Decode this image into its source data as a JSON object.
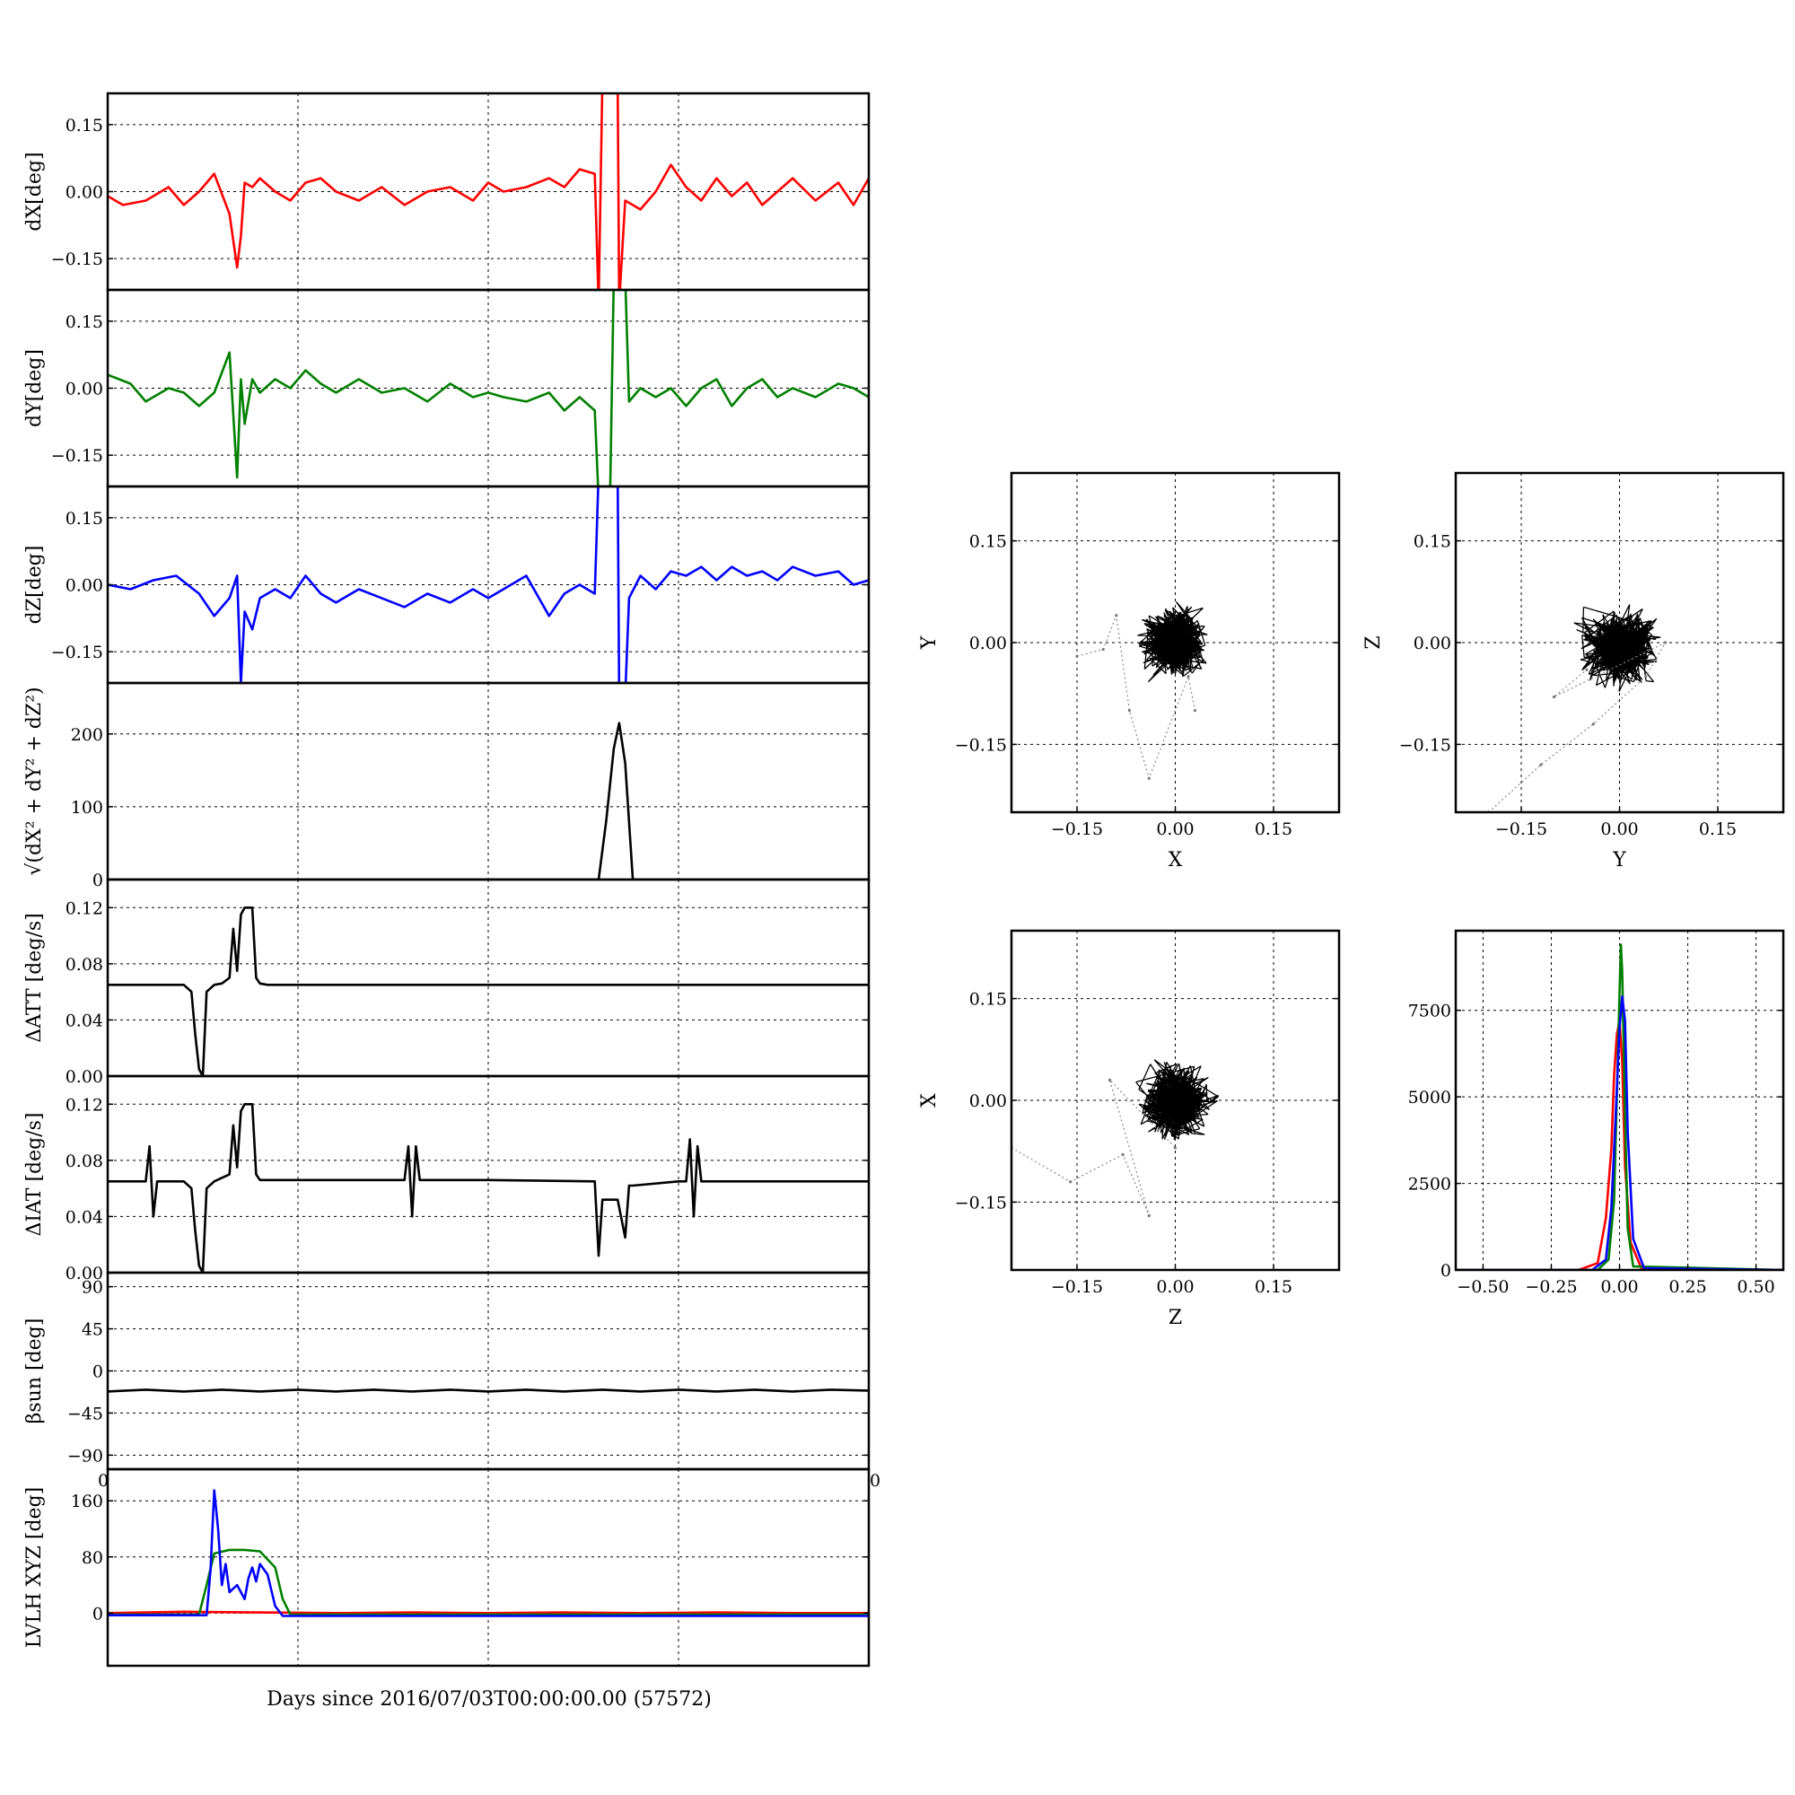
{
  "figure": {
    "xlabel": "Days since 2016/07/03T00:00:00.00 (57572)",
    "edge_ticks": [
      "0",
      "0"
    ]
  },
  "chart_data": [
    {
      "type": "line",
      "ylabel": "dX[deg]",
      "ylim": [
        -0.22,
        0.22
      ],
      "yticks": [
        0.15,
        0.0,
        -0.15
      ],
      "ytick_labels": [
        "0.15",
        "0.00",
        "−0.15"
      ],
      "xlim": [
        0,
        1
      ],
      "grid": true,
      "series": [
        {
          "color": "#ff0000",
          "x": [
            0.0,
            0.02,
            0.05,
            0.08,
            0.1,
            0.12,
            0.14,
            0.16,
            0.17,
            0.175,
            0.18,
            0.19,
            0.2,
            0.22,
            0.24,
            0.26,
            0.28,
            0.3,
            0.33,
            0.36,
            0.39,
            0.42,
            0.45,
            0.48,
            0.5,
            0.52,
            0.55,
            0.58,
            0.6,
            0.62,
            0.64,
            0.645,
            0.65,
            0.67,
            0.672,
            0.68,
            0.7,
            0.72,
            0.74,
            0.76,
            0.78,
            0.8,
            0.82,
            0.84,
            0.86,
            0.88,
            0.9,
            0.93,
            0.96,
            0.98,
            1.0
          ],
          "y": [
            -0.01,
            -0.03,
            -0.02,
            0.01,
            -0.03,
            0.0,
            0.04,
            -0.05,
            -0.17,
            -0.1,
            0.02,
            0.01,
            0.03,
            0.0,
            -0.02,
            0.02,
            0.03,
            0.0,
            -0.02,
            0.01,
            -0.03,
            0.0,
            0.01,
            -0.02,
            0.02,
            0.0,
            0.01,
            0.03,
            0.01,
            0.05,
            0.04,
            -0.25,
            0.25,
            0.25,
            -0.25,
            -0.02,
            -0.04,
            0.0,
            0.06,
            0.01,
            -0.02,
            0.03,
            -0.01,
            0.02,
            -0.03,
            0.0,
            0.03,
            -0.02,
            0.02,
            -0.03,
            0.03
          ]
        }
      ]
    },
    {
      "type": "line",
      "ylabel": "dY[deg]",
      "ylim": [
        -0.22,
        0.22
      ],
      "yticks": [
        0.15,
        0.0,
        -0.15
      ],
      "ytick_labels": [
        "0.15",
        "0.00",
        "−0.15"
      ],
      "xlim": [
        0,
        1
      ],
      "grid": true,
      "series": [
        {
          "color": "#008000",
          "x": [
            0.0,
            0.03,
            0.05,
            0.08,
            0.1,
            0.12,
            0.14,
            0.16,
            0.17,
            0.175,
            0.18,
            0.19,
            0.2,
            0.22,
            0.24,
            0.26,
            0.28,
            0.3,
            0.33,
            0.36,
            0.39,
            0.42,
            0.45,
            0.48,
            0.5,
            0.52,
            0.55,
            0.58,
            0.6,
            0.62,
            0.64,
            0.645,
            0.66,
            0.665,
            0.68,
            0.685,
            0.7,
            0.72,
            0.74,
            0.76,
            0.78,
            0.8,
            0.82,
            0.84,
            0.86,
            0.88,
            0.9,
            0.93,
            0.96,
            0.98,
            1.0
          ],
          "y": [
            0.03,
            0.01,
            -0.03,
            0.0,
            -0.01,
            -0.04,
            -0.01,
            0.08,
            -0.2,
            0.02,
            -0.08,
            0.02,
            -0.01,
            0.02,
            0.0,
            0.04,
            0.01,
            -0.01,
            0.02,
            -0.01,
            0.0,
            -0.03,
            0.01,
            -0.02,
            -0.01,
            -0.02,
            -0.03,
            -0.01,
            -0.05,
            -0.02,
            -0.05,
            -0.25,
            -0.25,
            0.25,
            0.25,
            -0.03,
            0.0,
            -0.02,
            0.0,
            -0.04,
            0.0,
            0.02,
            -0.04,
            0.0,
            0.02,
            -0.02,
            0.0,
            -0.02,
            0.01,
            0.0,
            -0.02
          ]
        }
      ]
    },
    {
      "type": "line",
      "ylabel": "dZ[deg]",
      "ylim": [
        -0.22,
        0.22
      ],
      "yticks": [
        0.15,
        0.0,
        -0.15
      ],
      "ytick_labels": [
        "0.15",
        "0.00",
        "−0.15"
      ],
      "xlim": [
        0,
        1
      ],
      "grid": true,
      "series": [
        {
          "color": "#0000ff",
          "x": [
            0.0,
            0.03,
            0.06,
            0.09,
            0.12,
            0.14,
            0.16,
            0.17,
            0.175,
            0.18,
            0.19,
            0.2,
            0.22,
            0.24,
            0.26,
            0.28,
            0.3,
            0.33,
            0.36,
            0.39,
            0.42,
            0.45,
            0.48,
            0.5,
            0.52,
            0.55,
            0.58,
            0.6,
            0.62,
            0.64,
            0.645,
            0.67,
            0.672,
            0.68,
            0.685,
            0.7,
            0.72,
            0.74,
            0.76,
            0.78,
            0.8,
            0.82,
            0.84,
            0.86,
            0.88,
            0.9,
            0.93,
            0.96,
            0.98,
            1.0
          ],
          "y": [
            0.0,
            -0.01,
            0.01,
            0.02,
            -0.02,
            -0.07,
            -0.03,
            0.02,
            -0.22,
            -0.06,
            -0.1,
            -0.03,
            -0.01,
            -0.03,
            0.02,
            -0.02,
            -0.04,
            -0.01,
            -0.03,
            -0.05,
            -0.02,
            -0.04,
            -0.01,
            -0.03,
            -0.01,
            0.02,
            -0.07,
            -0.02,
            0.0,
            -0.02,
            0.25,
            0.25,
            -0.25,
            -0.25,
            -0.03,
            0.02,
            -0.01,
            0.03,
            0.02,
            0.04,
            0.01,
            0.04,
            0.02,
            0.03,
            0.01,
            0.04,
            0.02,
            0.03,
            0.0,
            0.01
          ]
        }
      ]
    },
    {
      "type": "line",
      "ylabel": "√(dX² + dY² + dZ²)",
      "ylim": [
        0,
        270
      ],
      "yticks": [
        200,
        100,
        0
      ],
      "ytick_labels": [
        "200",
        "100",
        "0"
      ],
      "xlim": [
        0,
        1
      ],
      "grid": true,
      "series": [
        {
          "color": "#000000",
          "x": [
            0.0,
            0.645,
            0.655,
            0.665,
            0.672,
            0.68,
            0.69,
            1.0
          ],
          "y": [
            0,
            0,
            80,
            180,
            215,
            160,
            0,
            0
          ]
        }
      ]
    },
    {
      "type": "line",
      "ylabel": "ΔATT [deg/s]",
      "ylim": [
        0,
        0.14
      ],
      "yticks": [
        0.12,
        0.08,
        0.04,
        0.0
      ],
      "ytick_labels": [
        "0.12",
        "0.08",
        "0.04",
        "0.00"
      ],
      "xlim": [
        0,
        1
      ],
      "grid": true,
      "series": [
        {
          "color": "#000000",
          "x": [
            0.0,
            0.08,
            0.1,
            0.11,
            0.115,
            0.12,
            0.125,
            0.13,
            0.14,
            0.15,
            0.16,
            0.165,
            0.17,
            0.175,
            0.18,
            0.19,
            0.195,
            0.2,
            0.21,
            0.3,
            0.5,
            0.7,
            1.0
          ],
          "y": [
            0.065,
            0.065,
            0.065,
            0.06,
            0.03,
            0.005,
            0.0,
            0.06,
            0.065,
            0.066,
            0.07,
            0.105,
            0.075,
            0.115,
            0.12,
            0.12,
            0.07,
            0.066,
            0.065,
            0.065,
            0.065,
            0.065,
            0.065
          ]
        }
      ]
    },
    {
      "type": "line",
      "ylabel": "ΔIAT [deg/s]",
      "ylim": [
        0,
        0.14
      ],
      "yticks": [
        0.12,
        0.08,
        0.04,
        0.0
      ],
      "ytick_labels": [
        "0.12",
        "0.08",
        "0.04",
        "0.00"
      ],
      "xlim": [
        0,
        1
      ],
      "grid": true,
      "series": [
        {
          "color": "#000000",
          "x": [
            0.0,
            0.05,
            0.055,
            0.06,
            0.065,
            0.1,
            0.11,
            0.115,
            0.12,
            0.125,
            0.13,
            0.14,
            0.16,
            0.165,
            0.17,
            0.175,
            0.18,
            0.19,
            0.195,
            0.2,
            0.39,
            0.395,
            0.4,
            0.405,
            0.41,
            0.5,
            0.64,
            0.645,
            0.65,
            0.67,
            0.68,
            0.685,
            0.69,
            0.75,
            0.76,
            0.765,
            0.77,
            0.775,
            0.78,
            1.0
          ],
          "y": [
            0.065,
            0.065,
            0.09,
            0.04,
            0.065,
            0.065,
            0.06,
            0.03,
            0.005,
            0.0,
            0.06,
            0.065,
            0.07,
            0.105,
            0.075,
            0.115,
            0.12,
            0.12,
            0.07,
            0.066,
            0.066,
            0.09,
            0.04,
            0.09,
            0.066,
            0.066,
            0.065,
            0.012,
            0.052,
            0.052,
            0.025,
            0.062,
            0.062,
            0.065,
            0.065,
            0.095,
            0.04,
            0.09,
            0.065,
            0.065
          ]
        }
      ]
    },
    {
      "type": "line",
      "ylabel": "βsun [deg]",
      "ylim": [
        -105,
        105
      ],
      "yticks": [
        90,
        45,
        0,
        -45,
        -90
      ],
      "ytick_labels": [
        "90",
        "45",
        "0",
        "−45",
        "−90"
      ],
      "xlim": [
        0,
        1
      ],
      "grid": true,
      "series": [
        {
          "color": "#000000",
          "x": [
            0.0,
            0.05,
            0.1,
            0.15,
            0.2,
            0.25,
            0.3,
            0.35,
            0.4,
            0.45,
            0.5,
            0.55,
            0.6,
            0.65,
            0.7,
            0.75,
            0.8,
            0.85,
            0.9,
            0.95,
            1.0
          ],
          "y": [
            -22,
            -20,
            -22,
            -20,
            -22,
            -20,
            -22,
            -20,
            -22,
            -20,
            -22,
            -20,
            -22,
            -20,
            -22,
            -20,
            -22,
            -20,
            -22,
            -20,
            -21
          ]
        }
      ]
    },
    {
      "type": "line",
      "ylabel": "LVLH XYZ [deg]",
      "ylim": [
        -75,
        205
      ],
      "yticks": [
        160,
        80,
        0
      ],
      "ytick_labels": [
        "160",
        "80",
        "0"
      ],
      "xlim": [
        0,
        1
      ],
      "grid": true,
      "series": [
        {
          "color": "#ff0000",
          "x": [
            0.0,
            0.1,
            0.2,
            0.3,
            0.4,
            0.5,
            0.6,
            0.7,
            0.8,
            0.9,
            1.0
          ],
          "y": [
            0,
            2,
            1,
            0,
            1,
            0,
            1,
            0,
            1,
            0,
            0
          ]
        },
        {
          "color": "#008000",
          "x": [
            0.0,
            0.12,
            0.13,
            0.14,
            0.16,
            0.18,
            0.2,
            0.22,
            0.23,
            0.24,
            1.0
          ],
          "y": [
            -2,
            -2,
            40,
            85,
            90,
            90,
            88,
            65,
            20,
            -2,
            -2
          ]
        },
        {
          "color": "#0000ff",
          "x": [
            0.0,
            0.13,
            0.135,
            0.14,
            0.145,
            0.15,
            0.155,
            0.16,
            0.17,
            0.18,
            0.185,
            0.19,
            0.195,
            0.2,
            0.21,
            0.22,
            0.23,
            0.4,
            0.6,
            0.8,
            1.0
          ],
          "y": [
            -3,
            -3,
            60,
            175,
            120,
            40,
            70,
            30,
            40,
            20,
            50,
            65,
            45,
            70,
            55,
            10,
            -4,
            -4,
            -4,
            -4,
            -4
          ]
        }
      ]
    },
    {
      "type": "scatter",
      "xlabel": "X",
      "ylabel": "Y",
      "xlim": [
        -0.25,
        0.25
      ],
      "ylim": [
        -0.25,
        0.25
      ],
      "xticks": [
        -0.15,
        0.0,
        0.15
      ],
      "yticks": [
        0.15,
        0.0,
        -0.15
      ],
      "xtick_labels": [
        "−0.15",
        "0.00",
        "0.15"
      ],
      "ytick_labels": [
        "0.15",
        "0.00",
        "−0.15"
      ],
      "grid": true,
      "cluster_center": [
        0.0,
        0.0
      ],
      "cluster_spread": 0.04,
      "tail": [
        [
          -0.15,
          -0.02
        ],
        [
          -0.11,
          -0.01
        ],
        [
          -0.09,
          0.04
        ],
        [
          -0.07,
          -0.1
        ],
        [
          -0.04,
          -0.2
        ],
        [
          0.02,
          -0.05
        ],
        [
          0.03,
          -0.1
        ]
      ]
    },
    {
      "type": "scatter",
      "xlabel": "Y",
      "ylabel": "Z",
      "xlim": [
        -0.25,
        0.25
      ],
      "ylim": [
        -0.25,
        0.25
      ],
      "xticks": [
        -0.15,
        0.0,
        0.15
      ],
      "yticks": [
        0.15,
        0.0,
        -0.15
      ],
      "xtick_labels": [
        "−0.15",
        "0.00",
        "0.15"
      ],
      "ytick_labels": [
        "0.15",
        "0.00",
        "−0.15"
      ],
      "grid": true,
      "cluster_center": [
        0.0,
        -0.01
      ],
      "cluster_spread": 0.045,
      "tail": [
        [
          -0.2,
          -0.25
        ],
        [
          -0.12,
          -0.18
        ],
        [
          -0.04,
          -0.12
        ],
        [
          0.04,
          -0.05
        ],
        [
          0.07,
          0.0
        ],
        [
          -0.1,
          -0.08
        ],
        [
          -0.05,
          -0.04
        ]
      ]
    },
    {
      "type": "scatter",
      "xlabel": "Z",
      "ylabel": "X",
      "xlim": [
        -0.25,
        0.25
      ],
      "ylim": [
        -0.25,
        0.25
      ],
      "xticks": [
        -0.15,
        0.0,
        0.15
      ],
      "yticks": [
        0.15,
        0.0,
        -0.15
      ],
      "xtick_labels": [
        "−0.15",
        "0.00",
        "0.15"
      ],
      "ytick_labels": [
        "0.15",
        "0.00",
        "−0.15"
      ],
      "grid": true,
      "cluster_center": [
        0.0,
        0.0
      ],
      "cluster_spread": 0.042,
      "tail": [
        [
          -0.25,
          -0.07
        ],
        [
          -0.16,
          -0.12
        ],
        [
          -0.08,
          -0.08
        ],
        [
          -0.04,
          -0.17
        ],
        [
          -0.1,
          0.03
        ],
        [
          0.0,
          -0.07
        ]
      ]
    },
    {
      "type": "line",
      "subtype": "histogram",
      "xlim": [
        -0.6,
        0.6
      ],
      "ylim": [
        0,
        9800
      ],
      "xticks": [
        -0.5,
        -0.25,
        0.0,
        0.25,
        0.5
      ],
      "yticks": [
        7500,
        5000,
        2500,
        0
      ],
      "xtick_labels": [
        "−0.50",
        "−0.25",
        "0.00",
        "0.25",
        "0.50"
      ],
      "ytick_labels": [
        "7500",
        "5000",
        "2500",
        "0"
      ],
      "grid": true,
      "series": [
        {
          "color": "#ff0000",
          "x": [
            -0.6,
            -0.15,
            -0.08,
            -0.05,
            -0.03,
            -0.02,
            -0.01,
            0.0,
            0.01,
            0.02,
            0.04,
            0.08,
            0.6
          ],
          "y": [
            0,
            0,
            200,
            1500,
            3500,
            5600,
            6800,
            7200,
            6000,
            3000,
            800,
            50,
            0
          ]
        },
        {
          "color": "#008000",
          "x": [
            -0.6,
            -0.08,
            -0.04,
            -0.02,
            -0.01,
            0.0,
            0.005,
            0.01,
            0.02,
            0.03,
            0.05,
            0.6
          ],
          "y": [
            0,
            0,
            300,
            2000,
            5000,
            8000,
            9400,
            8600,
            4500,
            1200,
            100,
            0
          ]
        },
        {
          "color": "#0000ff",
          "x": [
            -0.6,
            -0.1,
            -0.05,
            -0.03,
            -0.01,
            0.0,
            0.01,
            0.02,
            0.03,
            0.05,
            0.09,
            0.6
          ],
          "y": [
            0,
            0,
            300,
            1800,
            5200,
            7000,
            7900,
            7200,
            4000,
            900,
            50,
            0
          ]
        }
      ]
    }
  ]
}
